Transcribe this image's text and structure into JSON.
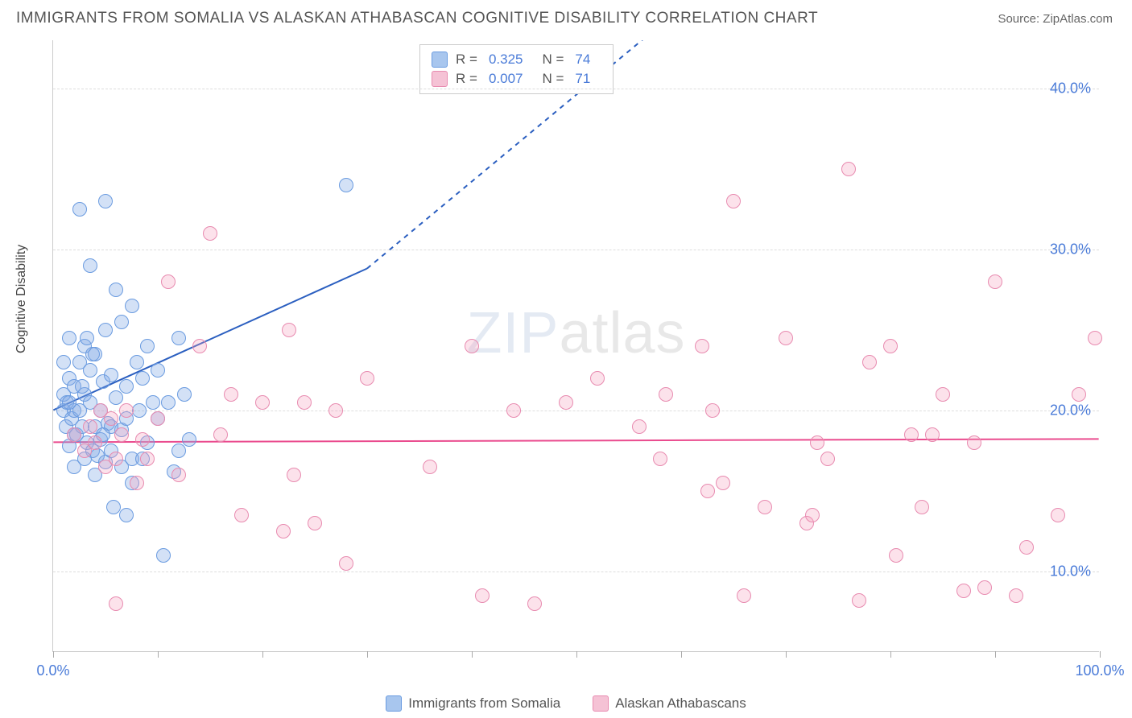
{
  "title": "IMMIGRANTS FROM SOMALIA VS ALASKAN ATHABASCAN COGNITIVE DISABILITY CORRELATION CHART",
  "source": "Source: ZipAtlas.com",
  "watermark_zip": "ZIP",
  "watermark_atlas": "atlas",
  "y_axis_label": "Cognitive Disability",
  "chart": {
    "type": "scatter",
    "xlim": [
      0,
      100
    ],
    "ylim": [
      5,
      43
    ],
    "x_ticks": [
      0,
      10,
      20,
      30,
      40,
      50,
      60,
      70,
      80,
      90,
      100
    ],
    "x_tick_labels": {
      "0": "0.0%",
      "100": "100.0%"
    },
    "y_ticks": [
      10,
      20,
      30,
      40
    ],
    "y_tick_labels": {
      "10": "10.0%",
      "20": "20.0%",
      "30": "30.0%",
      "40": "40.0%"
    },
    "grid_color": "#dddddd",
    "background_color": "#ffffff",
    "axis_color": "#cccccc",
    "series": [
      {
        "name": "Immigrants from Somalia",
        "fill": "rgba(130,170,230,0.35)",
        "stroke": "#6a9be0",
        "r_value": "0.325",
        "n_value": "74",
        "trend": {
          "x1": 0,
          "y1": 20,
          "x2_solid": 30,
          "y2_solid": 28.8,
          "x2_dash": 60,
          "y2_dash": 45,
          "color": "#2b5fc0",
          "width": 2
        },
        "points": [
          [
            1,
            20
          ],
          [
            1,
            21
          ],
          [
            1.2,
            19
          ],
          [
            1.3,
            20.5
          ],
          [
            1.5,
            22
          ],
          [
            1.8,
            19.5
          ],
          [
            2,
            20
          ],
          [
            2,
            21.5
          ],
          [
            2.2,
            18.5
          ],
          [
            2.5,
            23
          ],
          [
            2.5,
            20
          ],
          [
            2.8,
            19
          ],
          [
            3,
            24
          ],
          [
            3,
            21
          ],
          [
            3.2,
            18
          ],
          [
            3.5,
            22.5
          ],
          [
            3.5,
            20.5
          ],
          [
            3.8,
            17.5
          ],
          [
            4,
            19
          ],
          [
            4,
            23.5
          ],
          [
            4.2,
            17.2
          ],
          [
            4.5,
            20
          ],
          [
            4.5,
            18.2
          ],
          [
            4.8,
            21.8
          ],
          [
            5,
            25
          ],
          [
            5,
            16.8
          ],
          [
            5.2,
            19.2
          ],
          [
            5.5,
            22.2
          ],
          [
            5.5,
            17.5
          ],
          [
            5.8,
            14
          ],
          [
            6,
            20.8
          ],
          [
            6,
            27.5
          ],
          [
            6.5,
            18.8
          ],
          [
            7,
            21.5
          ],
          [
            7,
            19.5
          ],
          [
            7.5,
            17
          ],
          [
            8,
            23
          ],
          [
            8.2,
            20
          ],
          [
            8.5,
            22
          ],
          [
            9,
            18
          ],
          [
            9,
            24
          ],
          [
            2.5,
            32.5
          ],
          [
            3.5,
            29
          ],
          [
            5,
            33
          ],
          [
            1.5,
            24.5
          ],
          [
            10,
            19.5
          ],
          [
            10,
            22.5
          ],
          [
            11,
            20.5
          ],
          [
            11.5,
            16.2
          ],
          [
            12,
            24.5
          ],
          [
            12.5,
            21
          ],
          [
            13,
            18.2
          ],
          [
            6.5,
            16.5
          ],
          [
            7.5,
            15.5
          ],
          [
            4,
            16
          ],
          [
            3,
            17
          ],
          [
            2,
            16.5
          ],
          [
            10.5,
            11
          ],
          [
            7,
            13.5
          ],
          [
            7.5,
            26.5
          ],
          [
            12,
            17.5
          ],
          [
            1,
            23
          ],
          [
            1.5,
            17.8
          ],
          [
            2.8,
            21.5
          ],
          [
            3.8,
            23.5
          ],
          [
            5.5,
            19
          ],
          [
            9.5,
            20.5
          ],
          [
            6.5,
            25.5
          ],
          [
            8.5,
            17
          ],
          [
            2,
            18.5
          ],
          [
            1.5,
            20.5
          ],
          [
            3.2,
            24.5
          ],
          [
            4.8,
            18.5
          ],
          [
            28,
            34
          ]
        ]
      },
      {
        "name": "Alaskan Athabascans",
        "fill": "rgba(245,160,190,0.30)",
        "stroke": "#e88bb0",
        "r_value": "0.007",
        "n_value": "71",
        "trend": {
          "x1": 0,
          "y1": 18,
          "x2_solid": 100,
          "y2_solid": 18.2,
          "color": "#ea4b8e",
          "width": 2
        },
        "points": [
          [
            2,
            18.5
          ],
          [
            3,
            17.5
          ],
          [
            3.5,
            19
          ],
          [
            4,
            18
          ],
          [
            4.5,
            20
          ],
          [
            5,
            16.5
          ],
          [
            5.5,
            19.5
          ],
          [
            6,
            17
          ],
          [
            6.5,
            18.5
          ],
          [
            7,
            20
          ],
          [
            8,
            15.5
          ],
          [
            8.5,
            18.2
          ],
          [
            9,
            17
          ],
          [
            10,
            19.5
          ],
          [
            11,
            28
          ],
          [
            12,
            16
          ],
          [
            14,
            24
          ],
          [
            15,
            31
          ],
          [
            16,
            18.5
          ],
          [
            17,
            21
          ],
          [
            18,
            13.5
          ],
          [
            20,
            20.5
          ],
          [
            22,
            12.5
          ],
          [
            22.5,
            25
          ],
          [
            23,
            16
          ],
          [
            24,
            20.5
          ],
          [
            25,
            13
          ],
          [
            27,
            20
          ],
          [
            28,
            10.5
          ],
          [
            30,
            22
          ],
          [
            36,
            16.5
          ],
          [
            40,
            24
          ],
          [
            41,
            8.5
          ],
          [
            44,
            20
          ],
          [
            46,
            8
          ],
          [
            49,
            20.5
          ],
          [
            52,
            22
          ],
          [
            56,
            19
          ],
          [
            58,
            17
          ],
          [
            58.5,
            21
          ],
          [
            62,
            24
          ],
          [
            62.5,
            15
          ],
          [
            63,
            20
          ],
          [
            64,
            15.5
          ],
          [
            65,
            33
          ],
          [
            66,
            8.5
          ],
          [
            68,
            14
          ],
          [
            70,
            24.5
          ],
          [
            72,
            13
          ],
          [
            72.5,
            13.5
          ],
          [
            73,
            18
          ],
          [
            74,
            17
          ],
          [
            76,
            35
          ],
          [
            77,
            8.2
          ],
          [
            78,
            23
          ],
          [
            80,
            24
          ],
          [
            80.5,
            11
          ],
          [
            82,
            18.5
          ],
          [
            83,
            14
          ],
          [
            84,
            18.5
          ],
          [
            85,
            21
          ],
          [
            87,
            8.8
          ],
          [
            88,
            18
          ],
          [
            89,
            9
          ],
          [
            90,
            28
          ],
          [
            92,
            8.5
          ],
          [
            93,
            11.5
          ],
          [
            96,
            13.5
          ],
          [
            98,
            21
          ],
          [
            99.5,
            24.5
          ],
          [
            6,
            8
          ]
        ]
      }
    ]
  },
  "legend": {
    "swatch1_fill": "#a8c6ee",
    "swatch1_stroke": "#6a9be0",
    "swatch2_fill": "#f5c2d5",
    "swatch2_stroke": "#e88bb0",
    "r_label": "R  = ",
    "n_label": "N  = "
  }
}
